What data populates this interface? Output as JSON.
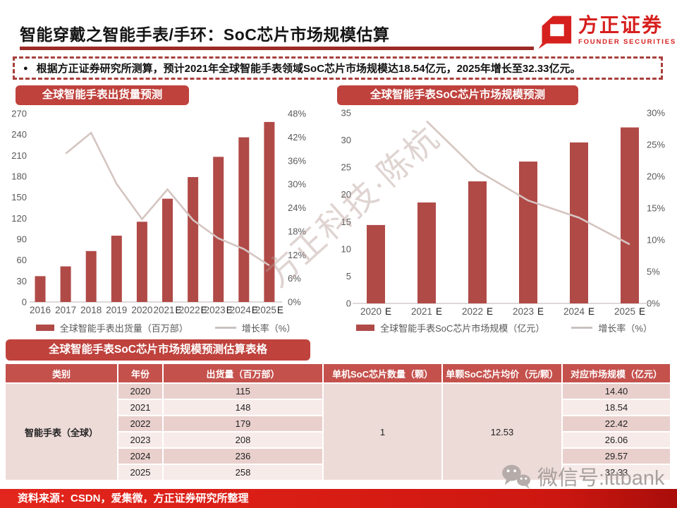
{
  "header": {
    "title": "智能穿戴之智能手表/手环：SoC芯片市场规模估算",
    "brand": "方正证券",
    "brand_sub": "FOUNDER SECURITIES"
  },
  "note": {
    "bullet": "●",
    "text": "根据方正证券研究所测算，预计2021年全球智能手表领域SoC芯片市场规模达18.54亿元，2025年增长至32.33亿元。"
  },
  "chart_data": [
    {
      "type": "bar",
      "title": "全球智能手表出货量预测",
      "categories": [
        "2016",
        "2017",
        "2018",
        "2019",
        "2020",
        "2021E",
        "2022E",
        "2023E",
        "2024E",
        "2025E"
      ],
      "series": [
        {
          "name": "全球智能手表出货量（百万部）",
          "kind": "bar",
          "axis": "left",
          "values": [
            37,
            51,
            73,
            95,
            115,
            148,
            179,
            208,
            236,
            258
          ]
        },
        {
          "name": "增长率（%）",
          "kind": "line",
          "axis": "right",
          "values": [
            null,
            37.8,
            43.1,
            30.1,
            21.1,
            28.7,
            20.9,
            16.2,
            13.5,
            9.3
          ]
        }
      ],
      "left_axis": {
        "min": 0,
        "max": 270,
        "step": 30
      },
      "right_axis": {
        "min": 0,
        "max": 48,
        "step": 6,
        "suffix": "%"
      },
      "legend_position": "bottom",
      "grid": false
    },
    {
      "type": "bar",
      "title": "全球智能手表SoC芯片市场规模预测",
      "categories": [
        "2020 E",
        "2021 E",
        "2022 E",
        "2023 E",
        "2024 E",
        "2025 E"
      ],
      "series": [
        {
          "name": "全球智能手表SoC芯片市场规模（亿元）",
          "kind": "bar",
          "axis": "left",
          "values": [
            14.4,
            18.54,
            22.42,
            26.06,
            29.57,
            32.33
          ]
        },
        {
          "name": "增长率（%）",
          "kind": "line",
          "axis": "right",
          "values": [
            null,
            28.7,
            20.9,
            16.2,
            13.5,
            9.3
          ]
        }
      ],
      "left_axis": {
        "min": 0,
        "max": 35,
        "step": 5
      },
      "right_axis": {
        "min": 0,
        "max": 30,
        "step": 5,
        "suffix": "%"
      },
      "legend_position": "bottom",
      "grid": false
    }
  ],
  "table": {
    "title": "全球智能手表SoC芯片市场规模预测估算表格",
    "headers": [
      "类别",
      "年份",
      "出货量（百万部）",
      "单机SoC芯片数量（颗）",
      "单颗SoC芯片均价（元/颗）",
      "对应市场规模（亿元）"
    ],
    "category": "智能手表（全球）",
    "years": [
      "2020",
      "2021",
      "2022",
      "2023",
      "2024",
      "2025"
    ],
    "shipments": [
      "115",
      "148",
      "179",
      "208",
      "236",
      "258"
    ],
    "chips_per_device": "1",
    "price_per_chip": "12.53",
    "market_size": [
      "14.40",
      "18.54",
      "22.42",
      "26.06",
      "29.57",
      "32.33"
    ]
  },
  "watermarks": {
    "diagonal": "方正科技·陈杭",
    "wechat": "微信号:ittbank"
  },
  "footer": {
    "text": "资料来源：CSDN，爱集微，方正证券研究所整理"
  },
  "colors": {
    "bar": "#b04a47",
    "line": "#d5c5c1",
    "pill_bg": "#bf423d",
    "header_bg": "#c5514c",
    "accent_dark": "#9c2b26",
    "logo_red": "#d6201e",
    "row_dark": "#e9d0cd",
    "row_light": "#f7ebe9",
    "row_merged": "#eddbd8",
    "tick_text": "#595959"
  }
}
